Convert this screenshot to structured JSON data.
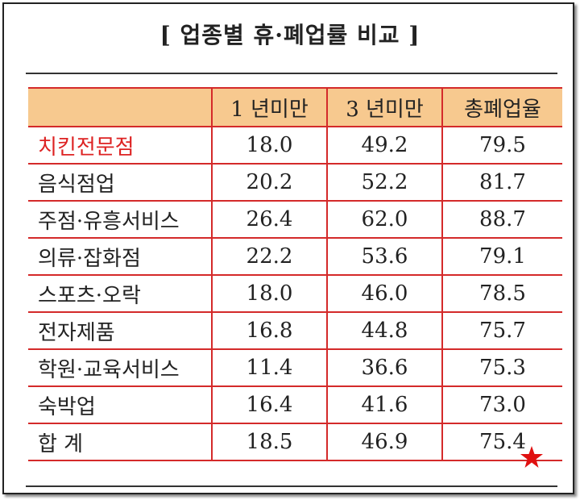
{
  "title": "[ 업종별 휴·폐업률 비교 ]",
  "table": {
    "header": [
      "1 년미만",
      "3 년미만",
      "총폐업율"
    ],
    "rows": [
      [
        "치킨전문점",
        "18.0",
        "49.2",
        "79.5"
      ],
      [
        "음식점업",
        "20.2",
        "52.2",
        "81.7"
      ],
      [
        "주점·유흥서비스",
        "26.4",
        "62.0",
        "88.7"
      ],
      [
        "의류·잡화점",
        "22.2",
        "53.6",
        "79.1"
      ],
      [
        "스포츠·오락",
        "18.0",
        "46.0",
        "78.5"
      ],
      [
        "전자제품",
        "16.8",
        "44.8",
        "75.7"
      ],
      [
        "학원·교육서비스",
        "11.4",
        "36.6",
        "75.3"
      ],
      [
        "숙박업",
        "16.4",
        "41.6",
        "73.0"
      ],
      [
        "합 계",
        "18.5",
        "46.9",
        "75.4"
      ]
    ]
  }
}
